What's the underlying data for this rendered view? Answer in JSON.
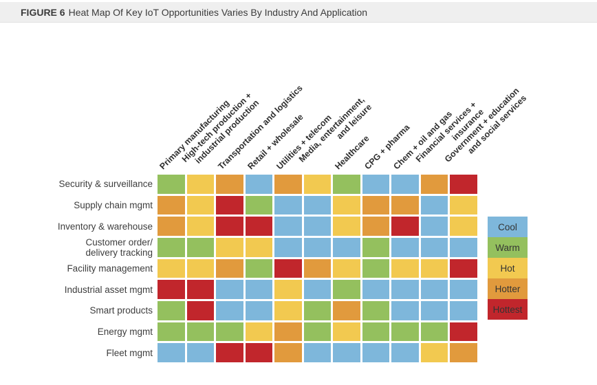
{
  "header": {
    "figure_label": "FIGURE 6",
    "title": "Heat Map Of Key IoT Opportunities Varies By Industry And Application"
  },
  "chart_data": {
    "type": "heatmap",
    "title": "Heat Map Of Key IoT Opportunities Varies By Industry And Application",
    "columns": [
      "Primary manufacturing",
      "High-tech production +\nindustrial production",
      "Transportation and logistics",
      "Retail + wholesale",
      "Utilities + telecom",
      "Media, entertainment,\nand leisure",
      "Healthcare",
      "CPG + pharma",
      "Chem + oil and gas",
      "Financial services +\ninsurance",
      "Government + education\nand social services"
    ],
    "rows": [
      "Security & surveillance",
      "Supply chain mgmt",
      "Inventory & warehouse",
      "Customer order/\ndelivery tracking",
      "Facility management",
      "Industrial asset mgmt",
      "Smart products",
      "Energy mgmt",
      "Fleet mgmt"
    ],
    "values": [
      [
        "warm",
        "hot",
        "hotter",
        "cool",
        "hotter",
        "hot",
        "warm",
        "cool",
        "cool",
        "hotter",
        "hottest"
      ],
      [
        "hotter",
        "hot",
        "hottest",
        "warm",
        "cool",
        "cool",
        "hot",
        "hotter",
        "hotter",
        "cool",
        "hot"
      ],
      [
        "hotter",
        "hot",
        "hottest",
        "hottest",
        "cool",
        "cool",
        "hot",
        "hotter",
        "hottest",
        "cool",
        "hot"
      ],
      [
        "warm",
        "warm",
        "hot",
        "hot",
        "cool",
        "cool",
        "cool",
        "warm",
        "cool",
        "cool",
        "cool"
      ],
      [
        "hot",
        "hot",
        "hotter",
        "warm",
        "hottest",
        "hotter",
        "hot",
        "warm",
        "hot",
        "hot",
        "hottest"
      ],
      [
        "hottest",
        "hottest",
        "cool",
        "cool",
        "hot",
        "cool",
        "warm",
        "cool",
        "cool",
        "cool",
        "cool"
      ],
      [
        "warm",
        "hottest",
        "cool",
        "cool",
        "hot",
        "warm",
        "hotter",
        "warm",
        "cool",
        "cool",
        "cool"
      ],
      [
        "warm",
        "warm",
        "warm",
        "hot",
        "hotter",
        "warm",
        "hot",
        "warm",
        "warm",
        "warm",
        "hottest"
      ],
      [
        "cool",
        "cool",
        "hottest",
        "hottest",
        "hotter",
        "cool",
        "cool",
        "cool",
        "cool",
        "hot",
        "hotter"
      ]
    ],
    "scale": [
      {
        "label": "Cool",
        "level": "cool",
        "color": "#7EB7DB"
      },
      {
        "label": "Warm",
        "level": "warm",
        "color": "#94C05E"
      },
      {
        "label": "Hot",
        "level": "hot",
        "color": "#F2C950"
      },
      {
        "label": "Hotter",
        "level": "hotter",
        "color": "#E19A3D"
      },
      {
        "label": "Hottest",
        "level": "hottest",
        "color": "#C1262C"
      }
    ],
    "legend_position": "right",
    "grid_gap_color": "#ffffff"
  }
}
